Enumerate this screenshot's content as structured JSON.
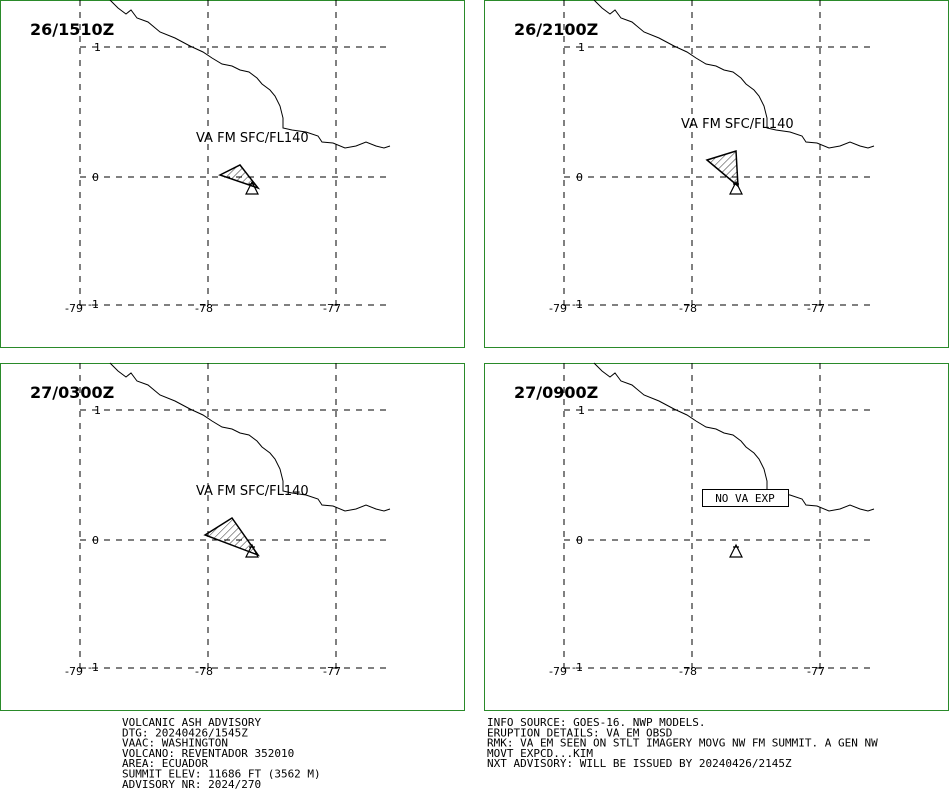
{
  "axis_labels": {
    "lat": [
      "1",
      "0",
      "-1"
    ],
    "lon": [
      "-79",
      "-78",
      "-77"
    ]
  },
  "panels": [
    {
      "time": "26/1510Z",
      "label": "VA FM SFC/FL140"
    },
    {
      "time": "26/2100Z",
      "label": "VA FM SFC/FL140"
    },
    {
      "time": "27/0300Z",
      "label": "VA FM SFC/FL140"
    },
    {
      "time": "27/0900Z",
      "label": "NO VA EXP"
    }
  ],
  "advisory_left": [
    "VOLCANIC ASH ADVISORY",
    "DTG: 20240426/1545Z",
    "VAAC: WASHINGTON",
    "VOLCANO: REVENTADOR 352010",
    "AREA: ECUADOR",
    "SUMMIT ELEV: 11686 FT (3562 M)",
    "ADVISORY NR: 2024/270"
  ],
  "advisory_right": [
    "INFO SOURCE: GOES-16. NWP MODELS.",
    "ERUPTION DETAILS: VA EM OBSD",
    "RMK: VA EM SEEN ON STLT IMAGERY MOVG NW FM SUMMIT. A GEN NW",
    "MOVT EXPCD...KIM",
    "NXT ADVISORY: WILL BE ISSUED BY 20240426/2145Z"
  ]
}
